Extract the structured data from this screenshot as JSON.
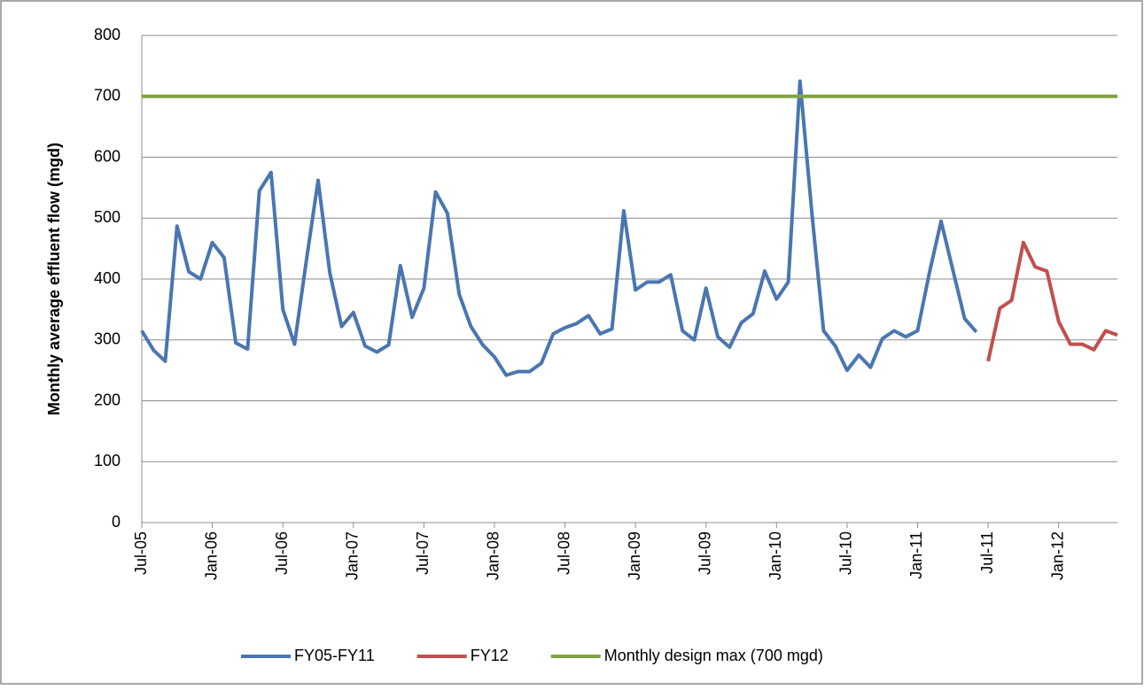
{
  "chart_data": {
    "type": "line",
    "y_label": "Monthly average effluent flow (mgd)",
    "categories": [
      "Jul-05",
      null,
      null,
      null,
      null,
      null,
      "Jan-06",
      null,
      null,
      null,
      null,
      null,
      "Jul-06",
      null,
      null,
      null,
      null,
      null,
      "Jan-07",
      null,
      null,
      null,
      null,
      null,
      "Jul-07",
      null,
      null,
      null,
      null,
      null,
      "Jan-08",
      null,
      null,
      null,
      null,
      null,
      "Jul-08",
      null,
      null,
      null,
      null,
      null,
      "Jan-09",
      null,
      null,
      null,
      null,
      null,
      "Jul-09",
      null,
      null,
      null,
      null,
      null,
      "Jan-10",
      null,
      null,
      null,
      null,
      null,
      "Jul-10",
      null,
      null,
      null,
      null,
      null,
      "Jan-11",
      null,
      null,
      null,
      null,
      null,
      "Jul-11",
      null,
      null,
      null,
      null,
      null,
      "Jan-12",
      null,
      null,
      null,
      null,
      null
    ],
    "series": [
      {
        "name": "FY05-FY11",
        "color": "#4a76b0",
        "values": [
          315,
          283,
          265,
          487,
          412,
          400,
          460,
          435,
          295,
          285,
          545,
          575,
          350,
          293,
          430,
          562,
          410,
          322,
          345,
          290,
          280,
          292,
          422,
          337,
          385,
          543,
          508,
          375,
          322,
          292,
          272,
          242,
          248,
          248,
          262,
          310,
          320,
          327,
          340,
          310,
          318,
          512,
          382,
          395,
          395,
          407,
          315,
          300,
          385,
          305,
          288,
          328,
          343,
          413,
          367,
          395,
          725,
          510,
          315,
          290,
          250,
          275,
          255,
          302,
          315,
          305,
          315,
          410,
          495,
          415,
          335,
          313,
          null,
          null,
          null,
          null,
          null,
          null,
          null,
          null,
          null,
          null,
          null,
          null
        ]
      },
      {
        "name": "FY12",
        "color": "#c0504d",
        "values": [
          null,
          null,
          null,
          null,
          null,
          null,
          null,
          null,
          null,
          null,
          null,
          null,
          null,
          null,
          null,
          null,
          null,
          null,
          null,
          null,
          null,
          null,
          null,
          null,
          null,
          null,
          null,
          null,
          null,
          null,
          null,
          null,
          null,
          null,
          null,
          null,
          null,
          null,
          null,
          null,
          null,
          null,
          null,
          null,
          null,
          null,
          null,
          null,
          null,
          null,
          null,
          null,
          null,
          null,
          null,
          null,
          null,
          null,
          null,
          null,
          null,
          null,
          null,
          null,
          null,
          null,
          null,
          null,
          null,
          null,
          null,
          null,
          265,
          352,
          365,
          460,
          420,
          413,
          330,
          293,
          293,
          284,
          315,
          308
        ]
      },
      {
        "name": "Monthly design max (700 mgd)",
        "color": "#7ea342",
        "values": [
          700,
          700,
          700,
          700,
          700,
          700,
          700,
          700,
          700,
          700,
          700,
          700,
          700,
          700,
          700,
          700,
          700,
          700,
          700,
          700,
          700,
          700,
          700,
          700,
          700,
          700,
          700,
          700,
          700,
          700,
          700,
          700,
          700,
          700,
          700,
          700,
          700,
          700,
          700,
          700,
          700,
          700,
          700,
          700,
          700,
          700,
          700,
          700,
          700,
          700,
          700,
          700,
          700,
          700,
          700,
          700,
          700,
          700,
          700,
          700,
          700,
          700,
          700,
          700,
          700,
          700,
          700,
          700,
          700,
          700,
          700,
          700,
          700,
          700,
          700,
          700,
          700,
          700,
          700,
          700,
          700,
          700,
          700,
          700
        ]
      }
    ],
    "ylim": [
      0,
      800
    ],
    "yticks": [
      0,
      100,
      200,
      300,
      400,
      500,
      600,
      700,
      800
    ],
    "grid": true
  }
}
